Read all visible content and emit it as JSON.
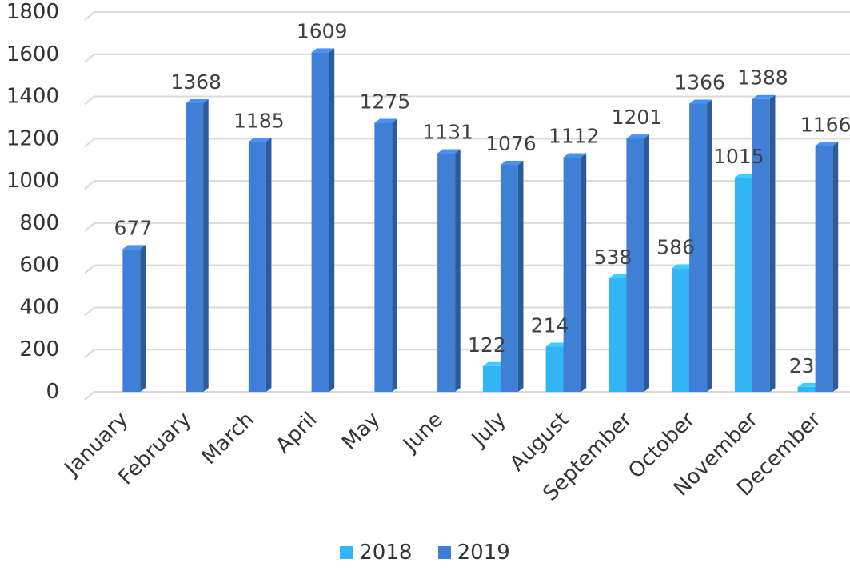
{
  "chart_data": {
    "type": "bar",
    "title": "",
    "xlabel": "",
    "ylabel": "",
    "ylim": [
      0,
      1800
    ],
    "yticks": [
      0,
      200,
      400,
      600,
      800,
      1000,
      1200,
      1400,
      1600,
      1800
    ],
    "grid": true,
    "legend_position": "bottom",
    "categories": [
      "January",
      "February",
      "March",
      "April",
      "May",
      "June",
      "July",
      "August",
      "September",
      "October",
      "November",
      "December"
    ],
    "series": [
      {
        "name": "2018",
        "color": "#33b4f5",
        "values": [
          null,
          null,
          null,
          null,
          null,
          null,
          122,
          214,
          538,
          586,
          1015,
          23
        ]
      },
      {
        "name": "2019",
        "color": "#3f7fd5",
        "values": [
          677,
          1368,
          1185,
          1609,
          1275,
          1131,
          1076,
          1112,
          1201,
          1366,
          1388,
          1166
        ]
      }
    ]
  }
}
